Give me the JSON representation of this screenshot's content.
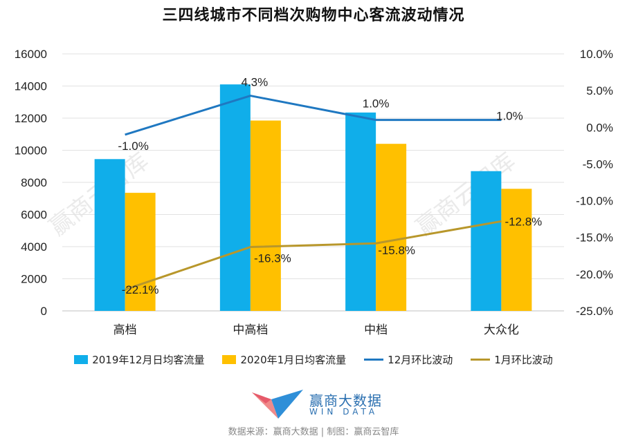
{
  "title": "三四线城市不同档次购物中心客流波动情况",
  "watermark": "赢商云智库",
  "chart_data": {
    "type": "bar",
    "categories": [
      "高档",
      "中高档",
      "中档",
      "大众化"
    ],
    "series": [
      {
        "name": "2019年12月日均客流量",
        "kind": "bar",
        "axis": "left",
        "color": "#10AEEA",
        "values": [
          9450,
          14100,
          12350,
          8700
        ]
      },
      {
        "name": "2020年1月日均客流量",
        "kind": "bar",
        "axis": "left",
        "color": "#FFC000",
        "values": [
          7350,
          11850,
          10400,
          7600
        ]
      }
    ],
    "lines": [
      {
        "name": "12月环比波动",
        "axis": "right",
        "color": "#1F78C1",
        "values": [
          -1.0,
          4.3,
          1.0,
          1.0
        ],
        "labels": [
          "-1.0%",
          "4.3%",
          "1.0%",
          "1.0%"
        ]
      },
      {
        "name": "1月环比波动",
        "axis": "right",
        "color": "#B8972B",
        "values": [
          -22.1,
          -16.3,
          -15.8,
          -12.8
        ],
        "labels": [
          "-22.1%",
          "-16.3%",
          "-15.8%",
          "-12.8%"
        ]
      }
    ],
    "y_left": {
      "min": 0,
      "max": 16000,
      "ticks": [
        "0",
        "2000",
        "4000",
        "6000",
        "8000",
        "10000",
        "12000",
        "14000",
        "16000"
      ]
    },
    "y_right": {
      "min": -25,
      "max": 10,
      "ticks": [
        "-25.0%",
        "-20.0%",
        "-15.0%",
        "-10.0%",
        "-5.0%",
        "0.0%",
        "5.0%",
        "10.0%"
      ]
    },
    "grid": true,
    "legend_position": "bottom"
  },
  "legend": [
    {
      "label": "2019年12月日均客流量",
      "shape": "box",
      "color": "#10AEEA"
    },
    {
      "label": "2020年1月日均客流量",
      "shape": "box",
      "color": "#FFC000"
    },
    {
      "label": "12月环比波动",
      "shape": "line",
      "color": "#1F78C1"
    },
    {
      "label": "1月环比波动",
      "shape": "line",
      "color": "#B8972B"
    }
  ],
  "logo": {
    "name": "赢商大数据",
    "sub": "WIN DATA"
  },
  "source": "数据来源：赢商大数据 | 制图：赢商云智库"
}
